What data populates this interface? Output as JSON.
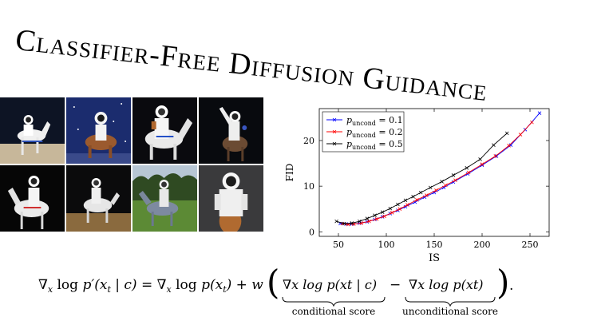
{
  "title": "Classifier-Free Diffusion Guidance",
  "images": [
    {
      "name": "astronaut-horse-beach"
    },
    {
      "name": "astronaut-horse-stars"
    },
    {
      "name": "astronaut-horse-dark"
    },
    {
      "name": "astronaut-horse-waving"
    },
    {
      "name": "astronaut-horse-black"
    },
    {
      "name": "astronaut-horse-night"
    },
    {
      "name": "astronaut-horse-field"
    },
    {
      "name": "astronaut-horse-portrait"
    }
  ],
  "chart_data": {
    "type": "line",
    "xlabel": "IS",
    "ylabel": "FID",
    "xlim": [
      30,
      270
    ],
    "ylim": [
      -1,
      27
    ],
    "xticks": [
      50,
      100,
      150,
      200,
      250
    ],
    "yticks": [
      0,
      10,
      20
    ],
    "legend_position": "top-left",
    "series": [
      {
        "name": "p_uncond = 0.1",
        "label_main": "p",
        "label_sub": "uncond",
        "label_value": " = 0.1",
        "color": "#0000ff",
        "x": [
          52,
          58,
          64,
          72,
          80,
          88,
          96,
          104,
          112,
          120,
          130,
          140,
          150,
          160,
          170,
          185,
          200,
          215,
          230,
          245,
          260
        ],
        "y": [
          1.8,
          1.7,
          1.7,
          1.9,
          2.2,
          2.7,
          3.3,
          4.0,
          4.7,
          5.5,
          6.5,
          7.6,
          8.6,
          9.7,
          10.9,
          12.7,
          14.6,
          16.6,
          19.0,
          22.4,
          26.0
        ]
      },
      {
        "name": "p_uncond = 0.2",
        "label_main": "p",
        "label_sub": "uncond",
        "label_value": " = 0.2",
        "color": "#ff0000",
        "x": [
          54,
          60,
          66,
          74,
          82,
          90,
          98,
          106,
          114,
          122,
          132,
          142,
          152,
          162,
          172,
          186,
          200,
          214,
          228,
          240,
          252
        ],
        "y": [
          1.8,
          1.6,
          1.7,
          1.9,
          2.3,
          2.8,
          3.4,
          4.2,
          5.0,
          5.9,
          7.0,
          8.0,
          9.1,
          10.2,
          11.3,
          13.0,
          14.8,
          16.6,
          18.9,
          21.3,
          24.0
        ]
      },
      {
        "name": "p_uncond = 0.5",
        "label_main": "p",
        "label_sub": "uncond",
        "label_value": " = 0.5",
        "color": "#000000",
        "x": [
          48,
          56,
          64,
          72,
          80,
          88,
          96,
          104,
          112,
          120,
          128,
          136,
          146,
          158,
          170,
          184,
          198,
          212,
          226
        ],
        "y": [
          2.3,
          1.8,
          1.9,
          2.3,
          2.9,
          3.6,
          4.3,
          5.1,
          6.0,
          6.9,
          7.7,
          8.6,
          9.7,
          11.0,
          12.4,
          14.0,
          15.9,
          19.0,
          21.6
        ]
      }
    ]
  },
  "formula": {
    "lhs_nabla": "∇",
    "lhs_sub": "x",
    "lhs_log": " log ",
    "lhs_p": "p′(x",
    "lhs_t": "t",
    "lhs_rest": " | c) = ",
    "mid_nabla": "∇",
    "mid_sub": "x",
    "mid_log": " log ",
    "mid_p": "p(x",
    "mid_t": "t",
    "mid_rest": ") + w",
    "cond_term": "∇x log p(xt | c)",
    "minus": "−",
    "uncond_term": "∇x log p(xt)",
    "period": ".",
    "conditional_label": "conditional score",
    "unconditional_label": "unconditional score"
  }
}
